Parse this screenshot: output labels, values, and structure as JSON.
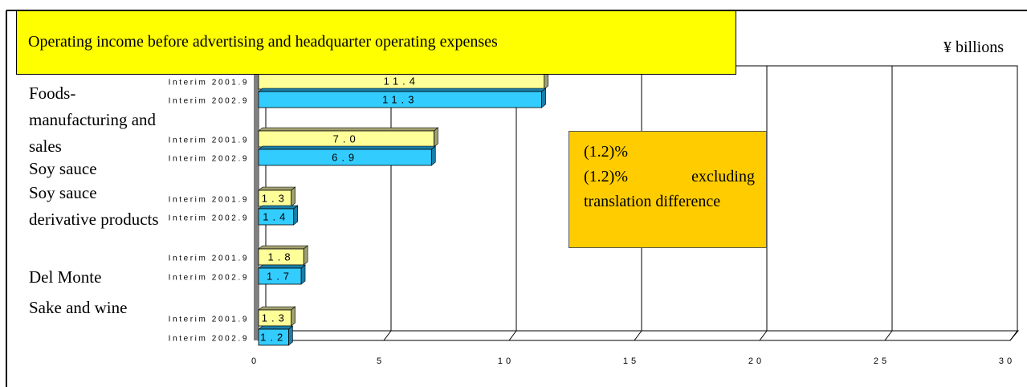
{
  "chart_data": {
    "type": "bar",
    "orientation": "horizontal",
    "title": "Operating income before advertising and headquarter operating expenses",
    "unit_label": "¥ billions",
    "categories": [
      "Foods-manufacturing and sales",
      "Soy sauce",
      "Soy sauce derivative products",
      "Del Monte",
      "Sake and wine"
    ],
    "series": [
      {
        "name": "Interim 2001.9",
        "color": "#ffff99",
        "values": [
          11.4,
          7.0,
          1.3,
          1.8,
          1.3
        ],
        "value_labels": [
          "11.4",
          "7.0",
          "1.3",
          "1.8",
          "1.3"
        ]
      },
      {
        "name": "Interim 2002.9",
        "color": "#33ccff",
        "values": [
          11.3,
          6.9,
          1.4,
          1.7,
          1.2
        ],
        "value_labels": [
          "11.3",
          "6.9",
          "1.4",
          "1.7",
          "1.2"
        ]
      }
    ],
    "xlim": [
      0,
      30
    ],
    "xticks": [
      0,
      5,
      10,
      15,
      20,
      25,
      30
    ],
    "grid": true,
    "annotation": [
      "(1.2)%",
      "(1.2)%  excluding translation difference"
    ]
  }
}
